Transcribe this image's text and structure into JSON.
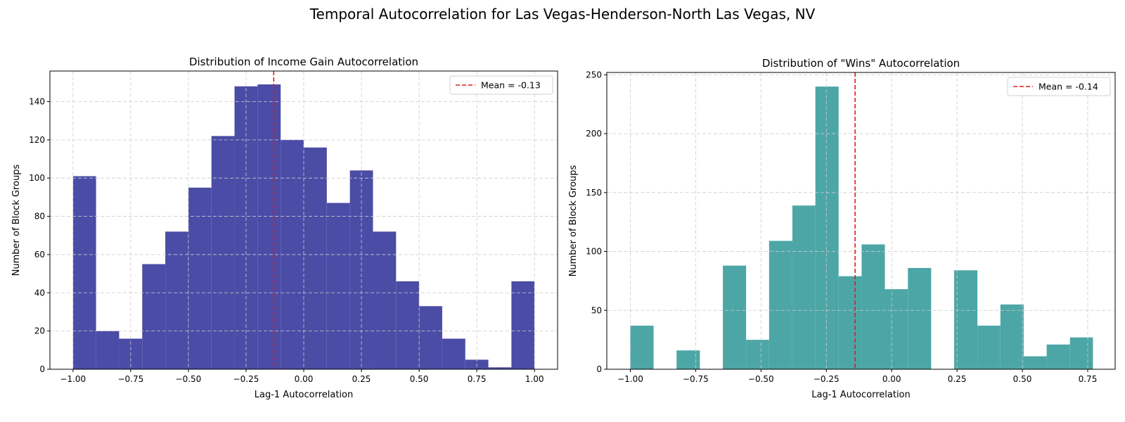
{
  "figure": {
    "suptitle": "Temporal Autocorrelation for Las Vegas-Henderson-North Las Vegas, NV"
  },
  "colors": {
    "income_bars": "#4b4ca6",
    "wins_bars": "#4da6a6",
    "mean_line": "#e41a1c",
    "grid": "#cccccc"
  },
  "chart_data": [
    {
      "type": "bar",
      "title": "Distribution of Income Gain Autocorrelation",
      "xlabel": "Lag-1 Autocorrelation",
      "ylabel": "Number of Block Groups",
      "xlim": [
        -1.1,
        1.1
      ],
      "ylim": [
        0,
        156
      ],
      "xticks": [
        -1.0,
        -0.75,
        -0.5,
        -0.25,
        0.0,
        0.25,
        0.5,
        0.75,
        1.0
      ],
      "xtick_labels": [
        "−1.00",
        "−0.75",
        "−0.50",
        "−0.25",
        "0.00",
        "0.25",
        "0.50",
        "0.75",
        "1.00"
      ],
      "yticks": [
        0,
        20,
        40,
        60,
        80,
        100,
        120,
        140
      ],
      "ytick_labels": [
        "0",
        "20",
        "40",
        "60",
        "80",
        "100",
        "120",
        "140"
      ],
      "bin_edges": [
        -1.0,
        -0.9,
        -0.8,
        -0.7,
        -0.6,
        -0.5,
        -0.4,
        -0.3,
        -0.2,
        -0.1,
        0.0,
        0.1,
        0.2,
        0.3,
        0.4,
        0.5,
        0.6,
        0.7,
        0.8,
        0.9,
        1.0
      ],
      "values": [
        101,
        20,
        16,
        55,
        72,
        95,
        122,
        148,
        149,
        120,
        116,
        87,
        104,
        72,
        46,
        33,
        16,
        5,
        1,
        46
      ],
      "mean": -0.13,
      "legend_label": "Mean = -0.13",
      "legend_loc": "upper right",
      "grid": true,
      "color_key": "income_bars"
    },
    {
      "type": "bar",
      "title": "Distribution of \"Wins\" Autocorrelation",
      "xlabel": "Lag-1 Autocorrelation",
      "ylabel": "Number of Block Groups",
      "xlim": [
        -1.09,
        0.855
      ],
      "ylim": [
        0,
        252
      ],
      "xticks": [
        -1.0,
        -0.75,
        -0.5,
        -0.25,
        0.0,
        0.25,
        0.5,
        0.75
      ],
      "xtick_labels": [
        "−1.00",
        "−0.75",
        "−0.50",
        "−0.25",
        "0.00",
        "0.25",
        "0.50",
        "0.75"
      ],
      "yticks": [
        0,
        50,
        100,
        150,
        200,
        250
      ],
      "ytick_labels": [
        "0",
        "50",
        "100",
        "150",
        "200",
        "250"
      ],
      "bin_edges": [
        -1.0,
        -0.911,
        -0.823,
        -0.734,
        -0.646,
        -0.557,
        -0.469,
        -0.38,
        -0.292,
        -0.203,
        -0.115,
        -0.026,
        0.062,
        0.151,
        0.239,
        0.328,
        0.416,
        0.505,
        0.593,
        0.682,
        0.77
      ],
      "values": [
        37,
        0,
        16,
        0,
        88,
        25,
        109,
        139,
        240,
        79,
        106,
        68,
        86,
        0,
        84,
        37,
        55,
        11,
        21,
        27
      ],
      "mean": -0.14,
      "legend_label": "Mean = -0.14",
      "legend_loc": "upper right",
      "grid": true,
      "color_key": "wins_bars"
    }
  ]
}
